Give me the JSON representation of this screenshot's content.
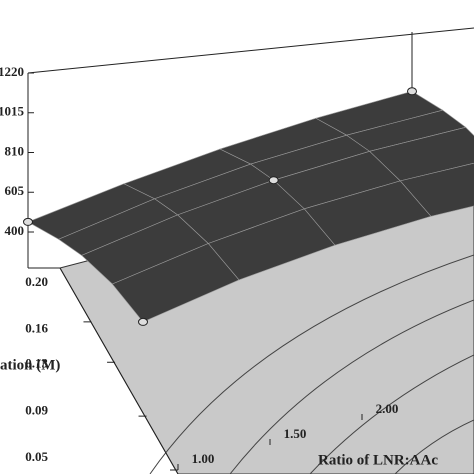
{
  "chart_data": {
    "type": "surface",
    "x_label": "Ratio of LNR:AAc",
    "y_label": "ation (M)",
    "xlim": [
      1.0,
      3.0
    ],
    "ylim": [
      0.05,
      0.2
    ],
    "zlim": [
      400,
      1220
    ],
    "xticks": [
      {
        "value": 1.0,
        "label": "1.00"
      },
      {
        "value": 1.5,
        "label": "1.50"
      },
      {
        "value": 2.0,
        "label": "2.00"
      }
    ],
    "yticks": [
      {
        "value": 0.2,
        "label": "0.20"
      },
      0.16,
      0.13,
      0.09,
      0.05
    ],
    "zticks": [
      400,
      605,
      810,
      1015,
      1220
    ],
    "x": [
      1.0,
      1.5,
      2.0,
      2.5,
      3.0
    ],
    "y": [
      0.2,
      0.16,
      0.13,
      0.09,
      0.05
    ],
    "z": [
      [
        452,
        520,
        570,
        600,
        610
      ],
      [
        500,
        580,
        630,
        650,
        650
      ],
      [
        520,
        600,
        650,
        670,
        665
      ],
      [
        510,
        590,
        640,
        655,
        645
      ],
      [
        452,
        540,
        590,
        610,
        600
      ]
    ],
    "color": "#3c3c3c",
    "points": {
      "x": [
        1.0,
        1.0,
        3.0,
        2.0
      ],
      "y": [
        0.2,
        0.05,
        0.2,
        0.13
      ],
      "z": [
        452,
        452,
        610,
        650
      ]
    }
  }
}
